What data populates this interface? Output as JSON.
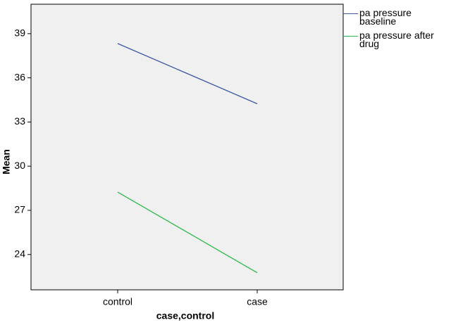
{
  "chart_data": {
    "type": "line",
    "x_label": "case,control",
    "y_label": "Mean",
    "categories": [
      "control",
      "case"
    ],
    "series": [
      {
        "name": "pa pressure baseline",
        "color": "#3a56a5",
        "values": [
          38.33,
          34.24
        ]
      },
      {
        "name": "pa pressure after drug",
        "color": "#2db84a",
        "values": [
          28.24,
          22.76
        ]
      }
    ],
    "ylim": [
      21.6,
      41
    ],
    "yticks": [
      24,
      27,
      30,
      33,
      36,
      39
    ]
  }
}
